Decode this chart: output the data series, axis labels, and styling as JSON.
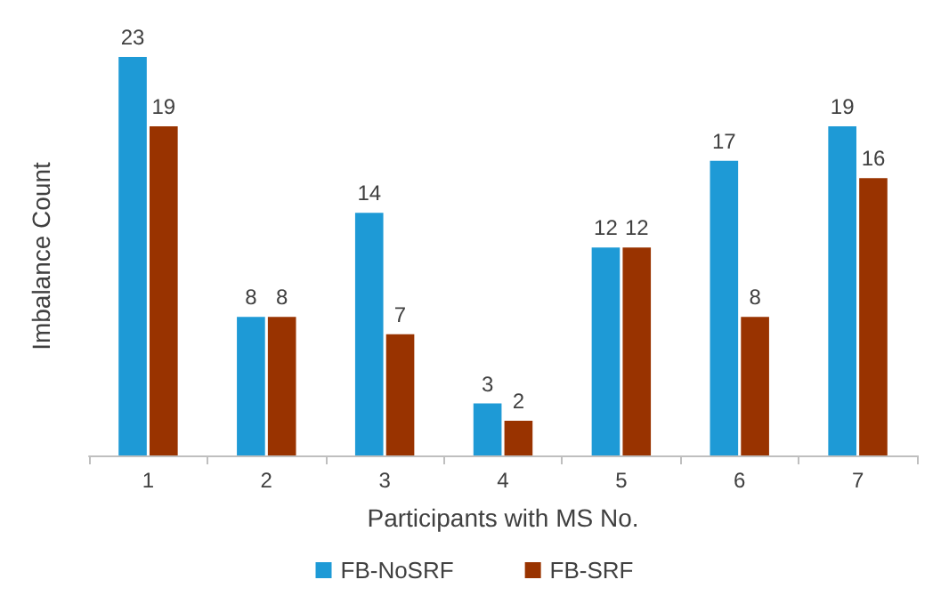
{
  "chart_data": {
    "type": "bar",
    "xlabel": "Participants with MS No.",
    "ylabel": "Imbalance Count",
    "categories": [
      "1",
      "2",
      "3",
      "4",
      "5",
      "6",
      "7"
    ],
    "series": [
      {
        "name": "FB-NoSRF",
        "color": "#1e9ad6",
        "values": [
          23,
          8,
          14,
          3,
          12,
          17,
          19
        ]
      },
      {
        "name": "FB-SRF",
        "color": "#993300",
        "values": [
          19,
          8,
          7,
          2,
          12,
          8,
          16
        ]
      }
    ],
    "data_labels": true,
    "legend": "bottom",
    "grid": false,
    "tick_labels": "x"
  }
}
